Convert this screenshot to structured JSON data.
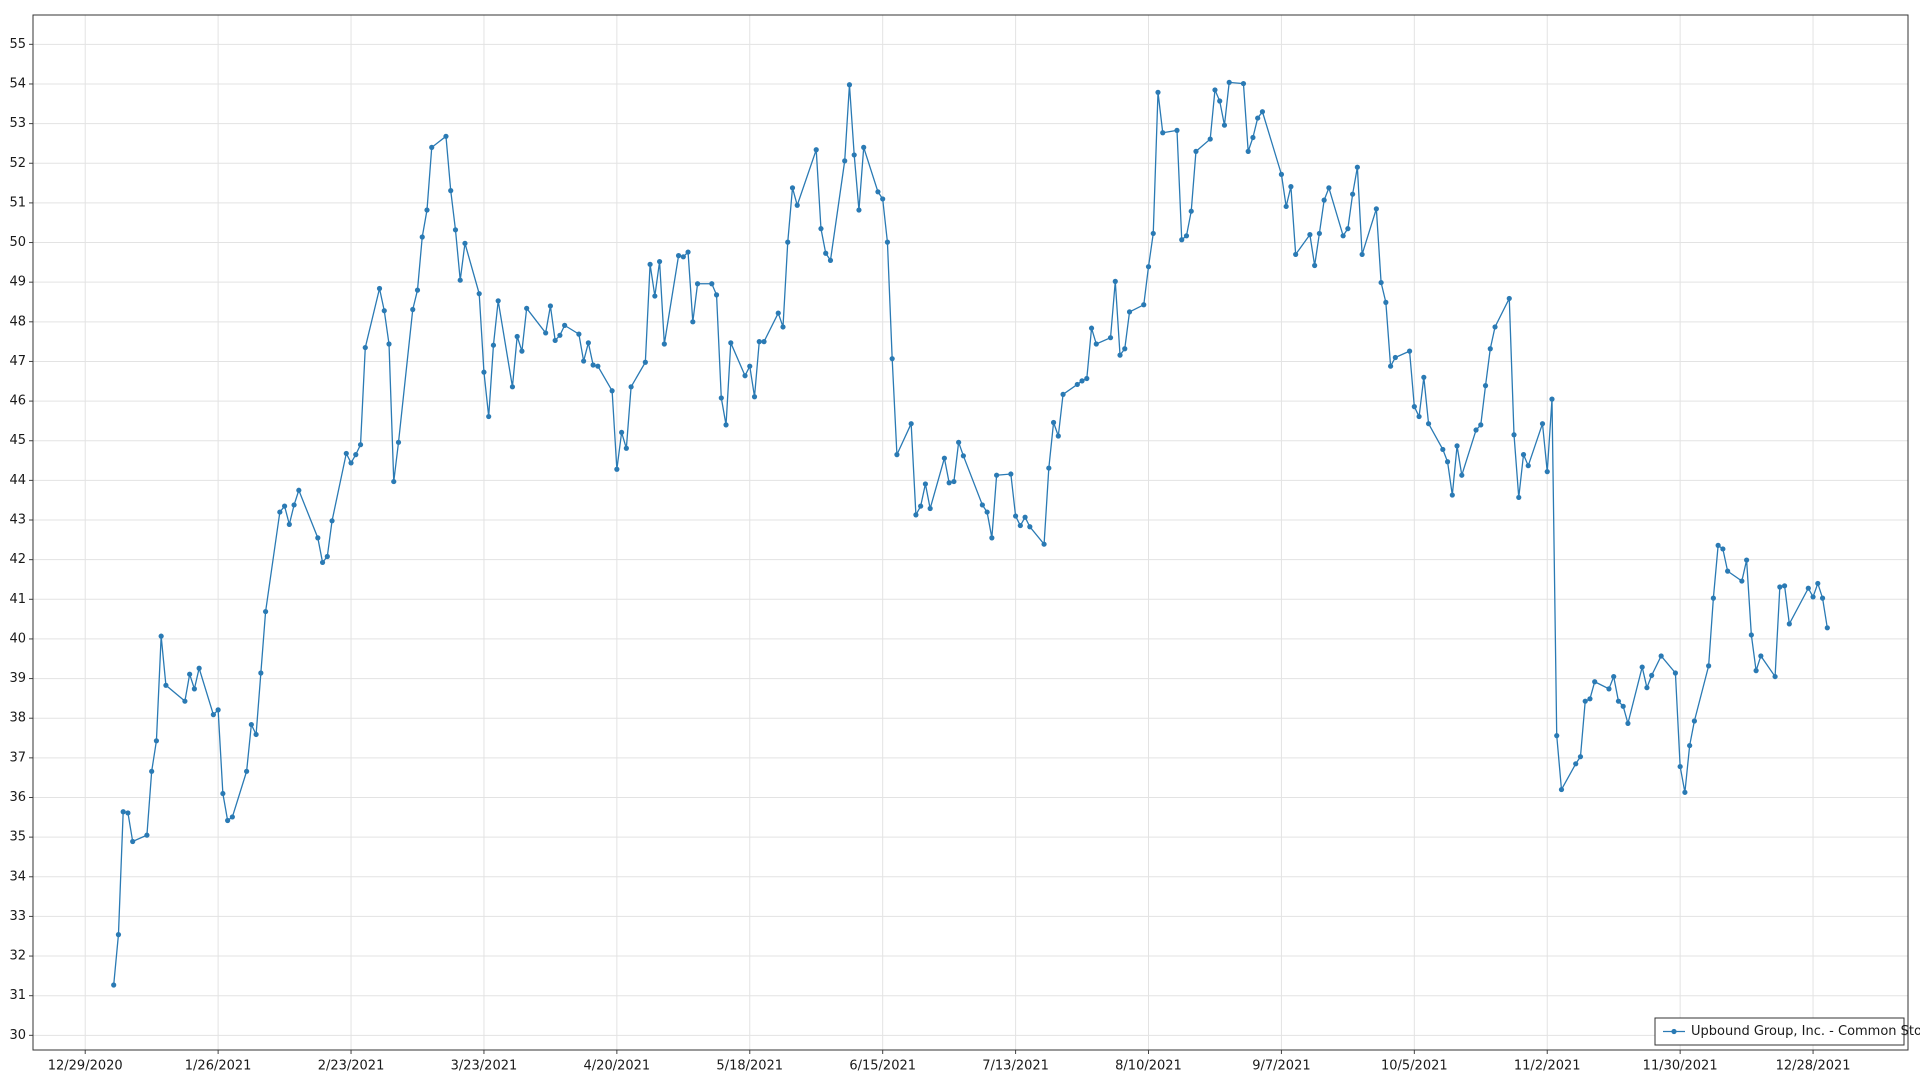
{
  "chart_data": {
    "type": "line",
    "x": [
      "1/4/2021",
      "1/5/2021",
      "1/6/2021",
      "1/7/2021",
      "1/8/2021",
      "1/11/2021",
      "1/12/2021",
      "1/13/2021",
      "1/14/2021",
      "1/15/2021",
      "1/19/2021",
      "1/20/2021",
      "1/21/2021",
      "1/22/2021",
      "1/25/2021",
      "1/26/2021",
      "1/27/2021",
      "1/28/2021",
      "1/29/2021",
      "2/1/2021",
      "2/2/2021",
      "2/3/2021",
      "2/4/2021",
      "2/5/2021",
      "2/8/2021",
      "2/9/2021",
      "2/10/2021",
      "2/11/2021",
      "2/12/2021",
      "2/16/2021",
      "2/17/2021",
      "2/18/2021",
      "2/19/2021",
      "2/22/2021",
      "2/23/2021",
      "2/24/2021",
      "2/25/2021",
      "2/26/2021",
      "3/1/2021",
      "3/2/2021",
      "3/3/2021",
      "3/4/2021",
      "3/5/2021",
      "3/8/2021",
      "3/9/2021",
      "3/10/2021",
      "3/11/2021",
      "3/12/2021",
      "3/15/2021",
      "3/16/2021",
      "3/17/2021",
      "3/18/2021",
      "3/19/2021",
      "3/22/2021",
      "3/23/2021",
      "3/24/2021",
      "3/25/2021",
      "3/26/2021",
      "3/29/2021",
      "3/30/2021",
      "3/31/2021",
      "4/1/2021",
      "4/5/2021",
      "4/6/2021",
      "4/7/2021",
      "4/8/2021",
      "4/9/2021",
      "4/12/2021",
      "4/13/2021",
      "4/14/2021",
      "4/15/2021",
      "4/16/2021",
      "4/19/2021",
      "4/20/2021",
      "4/21/2021",
      "4/22/2021",
      "4/23/2021",
      "4/26/2021",
      "4/27/2021",
      "4/28/2021",
      "4/29/2021",
      "4/30/2021",
      "5/3/2021",
      "5/4/2021",
      "5/5/2021",
      "5/6/2021",
      "5/7/2021",
      "5/10/2021",
      "5/11/2021",
      "5/12/2021",
      "5/13/2021",
      "5/14/2021",
      "5/17/2021",
      "5/18/2021",
      "5/19/2021",
      "5/20/2021",
      "5/21/2021",
      "5/24/2021",
      "5/25/2021",
      "5/26/2021",
      "5/27/2021",
      "5/28/2021",
      "6/1/2021",
      "6/2/2021",
      "6/3/2021",
      "6/4/2021",
      "6/7/2021",
      "6/8/2021",
      "6/9/2021",
      "6/10/2021",
      "6/11/2021",
      "6/14/2021",
      "6/15/2021",
      "6/16/2021",
      "6/17/2021",
      "6/18/2021",
      "6/21/2021",
      "6/22/2021",
      "6/23/2021",
      "6/24/2021",
      "6/25/2021",
      "6/28/2021",
      "6/29/2021",
      "6/30/2021",
      "7/1/2021",
      "7/2/2021",
      "7/6/2021",
      "7/7/2021",
      "7/8/2021",
      "7/9/2021",
      "7/12/2021",
      "7/13/2021",
      "7/14/2021",
      "7/15/2021",
      "7/16/2021",
      "7/19/2021",
      "7/20/2021",
      "7/21/2021",
      "7/22/2021",
      "7/23/2021",
      "7/26/2021",
      "7/27/2021",
      "7/28/2021",
      "7/29/2021",
      "7/30/2021",
      "8/2/2021",
      "8/3/2021",
      "8/4/2021",
      "8/5/2021",
      "8/6/2021",
      "8/9/2021",
      "8/10/2021",
      "8/11/2021",
      "8/12/2021",
      "8/13/2021",
      "8/16/2021",
      "8/17/2021",
      "8/18/2021",
      "8/19/2021",
      "8/20/2021",
      "8/23/2021",
      "8/24/2021",
      "8/25/2021",
      "8/26/2021",
      "8/27/2021",
      "8/30/2021",
      "8/31/2021",
      "9/1/2021",
      "9/2/2021",
      "9/3/2021",
      "9/7/2021",
      "9/8/2021",
      "9/9/2021",
      "9/10/2021",
      "9/13/2021",
      "9/14/2021",
      "9/15/2021",
      "9/16/2021",
      "9/17/2021",
      "9/20/2021",
      "9/21/2021",
      "9/22/2021",
      "9/23/2021",
      "9/24/2021",
      "9/27/2021",
      "9/28/2021",
      "9/29/2021",
      "9/30/2021",
      "10/1/2021",
      "10/4/2021",
      "10/5/2021",
      "10/6/2021",
      "10/7/2021",
      "10/8/2021",
      "10/11/2021",
      "10/12/2021",
      "10/13/2021",
      "10/14/2021",
      "10/15/2021",
      "10/18/2021",
      "10/19/2021",
      "10/20/2021",
      "10/21/2021",
      "10/22/2021",
      "10/25/2021",
      "10/26/2021",
      "10/27/2021",
      "10/28/2021",
      "10/29/2021",
      "11/1/2021",
      "11/2/2021",
      "11/3/2021",
      "11/4/2021",
      "11/5/2021",
      "11/8/2021",
      "11/9/2021",
      "11/10/2021",
      "11/11/2021",
      "11/12/2021",
      "11/15/2021",
      "11/16/2021",
      "11/17/2021",
      "11/18/2021",
      "11/19/2021",
      "11/22/2021",
      "11/23/2021",
      "11/24/2021",
      "11/26/2021",
      "11/29/2021",
      "11/30/2021",
      "12/1/2021",
      "12/2/2021",
      "12/3/2021",
      "12/6/2021",
      "12/7/2021",
      "12/8/2021",
      "12/9/2021",
      "12/10/2021",
      "12/13/2021",
      "12/14/2021",
      "12/15/2021",
      "12/16/2021",
      "12/17/2021",
      "12/20/2021",
      "12/21/2021",
      "12/22/2021",
      "12/23/2021",
      "12/27/2021",
      "12/28/2021",
      "12/29/2021",
      "12/30/2021",
      "12/31/2021"
    ],
    "series": [
      {
        "name": "Upbound Group, Inc. - Common Stock",
        "color": "#2a7ab4",
        "values": [
          31.27,
          32.54,
          35.64,
          35.61,
          34.89,
          35.05,
          36.66,
          37.43,
          40.07,
          38.83,
          38.43,
          39.11,
          38.74,
          39.26,
          38.09,
          38.21,
          36.1,
          35.42,
          35.51,
          36.66,
          37.84,
          37.59,
          39.14,
          40.69,
          43.2,
          43.35,
          42.89,
          43.38,
          43.75,
          42.55,
          41.93,
          42.08,
          42.98,
          44.68,
          44.44,
          44.65,
          44.9,
          47.35,
          48.84,
          48.28,
          47.44,
          43.97,
          44.96,
          48.31,
          48.8,
          50.14,
          50.82,
          52.4,
          52.68,
          51.31,
          50.32,
          49.05,
          49.98,
          48.71,
          46.73,
          45.61,
          47.41,
          48.53,
          46.36,
          47.63,
          47.26,
          48.34,
          47.72,
          48.4,
          47.53,
          47.66,
          47.91,
          47.69,
          47.01,
          47.47,
          46.91,
          46.88,
          46.26,
          44.28,
          45.21,
          44.81,
          46.36,
          46.98,
          49.45,
          48.65,
          49.52,
          47.44,
          49.67,
          49.64,
          49.76,
          48.0,
          48.96,
          48.96,
          48.68,
          46.08,
          45.4,
          47.47,
          46.64,
          46.88,
          46.11,
          47.5,
          47.5,
          48.22,
          47.87,
          50.01,
          51.38,
          50.94,
          52.34,
          50.35,
          49.73,
          49.55,
          52.06,
          53.98,
          52.21,
          50.82,
          52.4,
          51.28,
          51.1,
          50.01,
          47.07,
          44.65,
          45.43,
          43.13,
          43.35,
          43.91,
          43.29,
          44.56,
          43.94,
          43.97,
          44.96,
          44.62,
          43.38,
          43.2,
          42.55,
          44.13,
          44.16,
          43.1,
          42.86,
          43.07,
          42.83,
          42.39,
          44.31,
          45.46,
          45.12,
          46.17,
          46.42,
          46.51,
          46.57,
          47.84,
          47.44,
          47.6,
          49.02,
          47.16,
          47.32,
          48.25,
          48.43,
          49.39,
          50.23,
          53.79,
          52.77,
          52.83,
          50.07,
          50.17,
          50.79,
          52.3,
          52.61,
          53.85,
          53.57,
          52.96,
          54.04,
          54.01,
          52.3,
          52.65,
          53.14,
          53.3,
          51.72,
          50.91,
          51.41,
          49.7,
          50.2,
          49.42,
          50.23,
          51.07,
          51.38,
          50.17,
          50.35,
          51.22,
          51.9,
          49.7,
          50.85,
          48.99,
          48.49,
          46.88,
          47.1,
          47.26,
          45.86,
          45.61,
          46.6,
          45.43,
          44.78,
          44.47,
          43.63,
          44.87,
          44.13,
          45.27,
          45.4,
          46.39,
          47.32,
          47.87,
          48.59,
          45.15,
          43.57,
          44.65,
          44.37,
          45.43,
          44.22,
          46.05,
          37.56,
          36.2,
          36.85,
          37.03,
          38.43,
          38.49,
          38.92,
          38.74,
          39.05,
          38.43,
          38.3,
          37.87,
          39.29,
          38.77,
          39.08,
          39.57,
          39.14,
          36.78,
          36.13,
          37.31,
          37.93,
          39.32,
          41.03,
          42.36,
          42.27,
          41.71,
          41.46,
          41.99,
          40.1,
          39.2,
          39.57,
          39.05,
          41.31,
          41.34,
          40.38,
          41.28,
          41.06,
          41.4,
          41.03,
          40.28
        ]
      }
    ],
    "xlim": [
      "12/18/2020",
      "1/17/2022"
    ],
    "xticks": [
      "12/29/2020",
      "1/26/2021",
      "2/23/2021",
      "3/23/2021",
      "4/20/2021",
      "5/18/2021",
      "6/15/2021",
      "7/13/2021",
      "8/10/2021",
      "9/7/2021",
      "10/5/2021",
      "11/2/2021",
      "11/30/2021",
      "12/28/2021"
    ],
    "ylim": [
      29.63,
      55.74
    ],
    "yticks": [
      30,
      31,
      32,
      33,
      34,
      35,
      36,
      37,
      38,
      39,
      40,
      41,
      42,
      43,
      44,
      45,
      46,
      47,
      48,
      49,
      50,
      51,
      52,
      53,
      54,
      55
    ],
    "grid": true,
    "legend": "lower right"
  }
}
